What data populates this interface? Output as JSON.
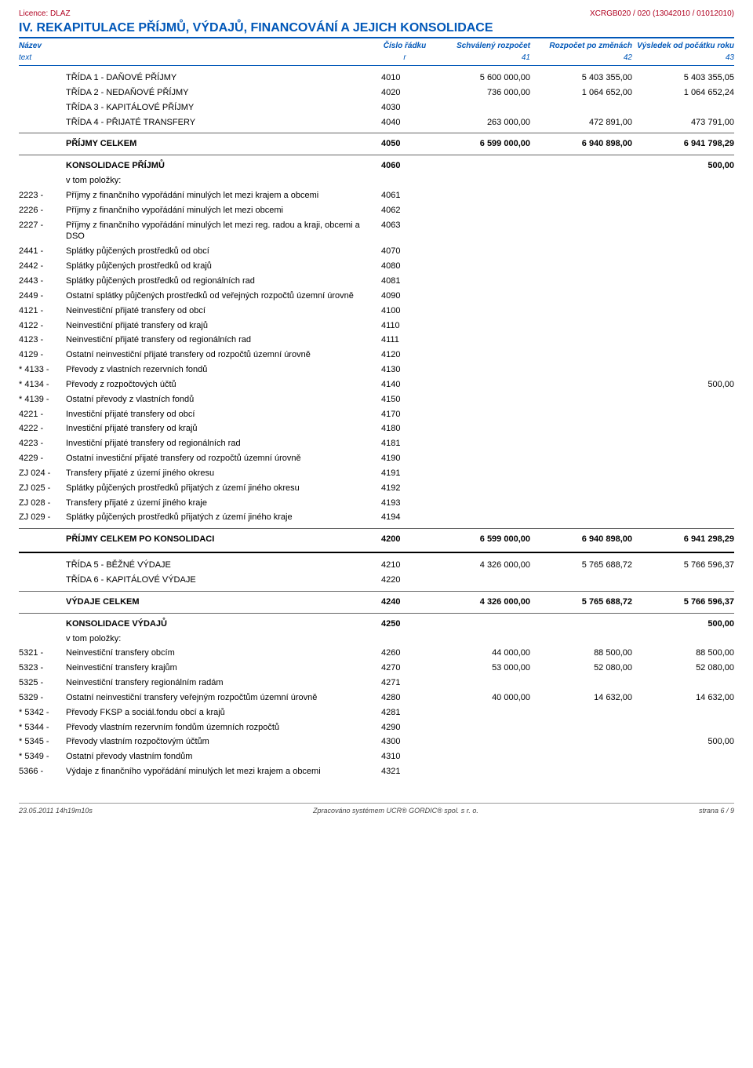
{
  "colors": {
    "heading": "#0057b8",
    "licence": "#b00020",
    "text": "#000000",
    "background": "#ffffff",
    "rule": "#666666"
  },
  "topbar": {
    "left": "Licence: DLAZ",
    "right": "XCRGB020 / 020 (13042010 / 01012010)"
  },
  "title": "IV. REKAPITULACE PŘÍJMŮ, VÝDAJŮ, FINANCOVÁNÍ A JEJICH KONSOLIDACE",
  "headers": {
    "c1": "Název",
    "c2": "Číslo řádku",
    "c3": "Schválený rozpočet",
    "c4": "Rozpočet po změnách",
    "c5": "Výsledek od počátku roku",
    "s1": "text",
    "s2": "r",
    "s3": "41",
    "s4": "42",
    "s5": "43"
  },
  "rows": [
    {
      "code": "",
      "label": "TŘÍDA 1 - DAŇOVÉ PŘÍJMY",
      "r": "4010",
      "v1": "5 600 000,00",
      "v2": "5 403 355,00",
      "v3": "5 403 355,05",
      "style": "indent"
    },
    {
      "code": "",
      "label": "TŘÍDA 2 - NEDAŇOVÉ PŘÍJMY",
      "r": "4020",
      "v1": "736 000,00",
      "v2": "1 064 652,00",
      "v3": "1 064 652,24",
      "style": "indent"
    },
    {
      "code": "",
      "label": "TŘÍDA 3 - KAPITÁLOVÉ PŘÍJMY",
      "r": "4030",
      "v1": "",
      "v2": "",
      "v3": "",
      "style": "indent"
    },
    {
      "code": "",
      "label": "TŘÍDA 4 - PŘIJATÉ TRANSFERY",
      "r": "4040",
      "v1": "263 000,00",
      "v2": "472 891,00",
      "v3": "473 791,00",
      "style": "indent",
      "sep_after": true
    },
    {
      "code": "",
      "label": "PŘÍJMY CELKEM",
      "r": "4050",
      "v1": "6 599 000,00",
      "v2": "6 940 898,00",
      "v3": "6 941 798,29",
      "style": "bold",
      "sep_after": true
    },
    {
      "code": "",
      "label": "KONSOLIDACE PŘÍJMŮ",
      "r": "4060",
      "v1": "",
      "v2": "",
      "v3": "500,00",
      "style": "bold"
    },
    {
      "code": "",
      "label": "v tom položky:",
      "r": "",
      "v1": "",
      "v2": "",
      "v3": "",
      "style": "indent"
    },
    {
      "code": "2223 -",
      "label": "Příjmy z finančního vypořádání minulých let mezi krajem a obcemi",
      "r": "4061",
      "v1": "",
      "v2": "",
      "v3": "",
      "style": "indent"
    },
    {
      "code": "2226 -",
      "label": "Příjmy z finančního vypořádání minulých let mezi obcemi",
      "r": "4062",
      "v1": "",
      "v2": "",
      "v3": "",
      "style": "indent"
    },
    {
      "code": "2227 -",
      "label": "Příjmy z finančního vypořádání minulých let mezi reg. radou a kraji, obcemi a DSO",
      "r": "4063",
      "v1": "",
      "v2": "",
      "v3": "",
      "style": "indent"
    },
    {
      "code": "2441 -",
      "label": "Splátky půjčených prostředků od obcí",
      "r": "4070",
      "v1": "",
      "v2": "",
      "v3": "",
      "style": "indent"
    },
    {
      "code": "2442 -",
      "label": "Splátky půjčených prostředků od krajů",
      "r": "4080",
      "v1": "",
      "v2": "",
      "v3": "",
      "style": "indent"
    },
    {
      "code": "2443 -",
      "label": "Splátky půjčených prostředků od regionálních rad",
      "r": "4081",
      "v1": "",
      "v2": "",
      "v3": "",
      "style": "indent"
    },
    {
      "code": "2449 -",
      "label": "Ostatní splátky půjčených prostředků od veřejných rozpočtů územní úrovně",
      "r": "4090",
      "v1": "",
      "v2": "",
      "v3": "",
      "style": "indent"
    },
    {
      "code": "4121 -",
      "label": "Neinvestiční přijaté transfery od obcí",
      "r": "4100",
      "v1": "",
      "v2": "",
      "v3": "",
      "style": "indent"
    },
    {
      "code": "4122 -",
      "label": "Neinvestiční přijaté transfery od krajů",
      "r": "4110",
      "v1": "",
      "v2": "",
      "v3": "",
      "style": "indent"
    },
    {
      "code": "4123 -",
      "label": "Neinvestiční přijaté transfery od regionálních rad",
      "r": "4111",
      "v1": "",
      "v2": "",
      "v3": "",
      "style": "indent"
    },
    {
      "code": "4129 -",
      "label": "Ostatní neinvestiční přijaté transfery od rozpočtů územní úrovně",
      "r": "4120",
      "v1": "",
      "v2": "",
      "v3": "",
      "style": "indent"
    },
    {
      "code": "* 4133 -",
      "label": "Převody z vlastních rezervních fondů",
      "r": "4130",
      "v1": "",
      "v2": "",
      "v3": "",
      "style": "indent"
    },
    {
      "code": "* 4134 -",
      "label": "Převody z rozpočtových účtů",
      "r": "4140",
      "v1": "",
      "v2": "",
      "v3": "500,00",
      "style": "indent"
    },
    {
      "code": "* 4139 -",
      "label": "Ostatní převody z vlastních fondů",
      "r": "4150",
      "v1": "",
      "v2": "",
      "v3": "",
      "style": "indent"
    },
    {
      "code": "4221 -",
      "label": "Investiční přijaté transfery od obcí",
      "r": "4170",
      "v1": "",
      "v2": "",
      "v3": "",
      "style": "indent"
    },
    {
      "code": "4222 -",
      "label": "Investiční přijaté transfery od krajů",
      "r": "4180",
      "v1": "",
      "v2": "",
      "v3": "",
      "style": "indent"
    },
    {
      "code": "4223 -",
      "label": "Investiční přijaté transfery od regionálních rad",
      "r": "4181",
      "v1": "",
      "v2": "",
      "v3": "",
      "style": "indent"
    },
    {
      "code": "4229 -",
      "label": "Ostatní investiční přijaté transfery od rozpočtů územní úrovně",
      "r": "4190",
      "v1": "",
      "v2": "",
      "v3": "",
      "style": "indent"
    },
    {
      "code": "ZJ 024 -",
      "label": "Transfery přijaté z území jiného okresu",
      "r": "4191",
      "v1": "",
      "v2": "",
      "v3": "",
      "style": "indent"
    },
    {
      "code": "ZJ 025 -",
      "label": "Splátky půjčených prostředků přijatých z území jiného okresu",
      "r": "4192",
      "v1": "",
      "v2": "",
      "v3": "",
      "style": "indent"
    },
    {
      "code": "ZJ 028 -",
      "label": "Transfery přijaté z území jiného kraje",
      "r": "4193",
      "v1": "",
      "v2": "",
      "v3": "",
      "style": "indent"
    },
    {
      "code": "ZJ 029 -",
      "label": "Splátky půjčených prostředků přijatých z území jiného kraje",
      "r": "4194",
      "v1": "",
      "v2": "",
      "v3": "",
      "style": "indent",
      "sep_after": true
    },
    {
      "code": "",
      "label": "PŘÍJMY CELKEM PO KONSOLIDACI",
      "r": "4200",
      "v1": "6 599 000,00",
      "v2": "6 940 898,00",
      "v3": "6 941 298,29",
      "style": "bold",
      "sep_after_strong": true
    },
    {
      "code": "",
      "label": "TŘÍDA 5 - BĚŽNÉ VÝDAJE",
      "r": "4210",
      "v1": "4 326 000,00",
      "v2": "5 765 688,72",
      "v3": "5 766 596,37",
      "style": "indent"
    },
    {
      "code": "",
      "label": "TŘÍDA 6 - KAPITÁLOVÉ VÝDAJE",
      "r": "4220",
      "v1": "",
      "v2": "",
      "v3": "",
      "style": "indent",
      "sep_after": true
    },
    {
      "code": "",
      "label": "VÝDAJE CELKEM",
      "r": "4240",
      "v1": "4 326 000,00",
      "v2": "5 765 688,72",
      "v3": "5 766 596,37",
      "style": "bold",
      "sep_after": true
    },
    {
      "code": "",
      "label": "KONSOLIDACE VÝDAJŮ",
      "r": "4250",
      "v1": "",
      "v2": "",
      "v3": "500,00",
      "style": "bold"
    },
    {
      "code": "",
      "label": "v tom položky:",
      "r": "",
      "v1": "",
      "v2": "",
      "v3": "",
      "style": "indent"
    },
    {
      "code": "5321 -",
      "label": "Neinvestiční transfery obcím",
      "r": "4260",
      "v1": "44 000,00",
      "v2": "88 500,00",
      "v3": "88 500,00",
      "style": "indent"
    },
    {
      "code": "5323 -",
      "label": "Neinvestiční transfery krajům",
      "r": "4270",
      "v1": "53 000,00",
      "v2": "52 080,00",
      "v3": "52 080,00",
      "style": "indent"
    },
    {
      "code": "5325 -",
      "label": "Neinvestiční transfery regionálním radám",
      "r": "4271",
      "v1": "",
      "v2": "",
      "v3": "",
      "style": "indent"
    },
    {
      "code": "5329 -",
      "label": "Ostatní neinvestiční transfery veřejným rozpočtům územní úrovně",
      "r": "4280",
      "v1": "40 000,00",
      "v2": "14 632,00",
      "v3": "14 632,00",
      "style": "indent"
    },
    {
      "code": "* 5342 -",
      "label": "Převody FKSP a sociál.fondu obcí a krajů",
      "r": "4281",
      "v1": "",
      "v2": "",
      "v3": "",
      "style": "indent"
    },
    {
      "code": "* 5344 -",
      "label": "Převody vlastním rezervním fondům územních rozpočtů",
      "r": "4290",
      "v1": "",
      "v2": "",
      "v3": "",
      "style": "indent"
    },
    {
      "code": "* 5345 -",
      "label": "Převody vlastním rozpočtovým účtům",
      "r": "4300",
      "v1": "",
      "v2": "",
      "v3": "500,00",
      "style": "indent"
    },
    {
      "code": "* 5349 -",
      "label": "Ostatní převody vlastním fondům",
      "r": "4310",
      "v1": "",
      "v2": "",
      "v3": "",
      "style": "indent"
    },
    {
      "code": "5366 -",
      "label": "Výdaje z finančního vypořádání minulých let mezi krajem a obcemi",
      "r": "4321",
      "v1": "",
      "v2": "",
      "v3": "",
      "style": "indent"
    }
  ],
  "footer": {
    "left": "23.05.2011 14h19m10s",
    "center": "Zpracováno systémem UCR® GORDIC® spol. s r. o.",
    "right": "strana 6 / 9"
  }
}
